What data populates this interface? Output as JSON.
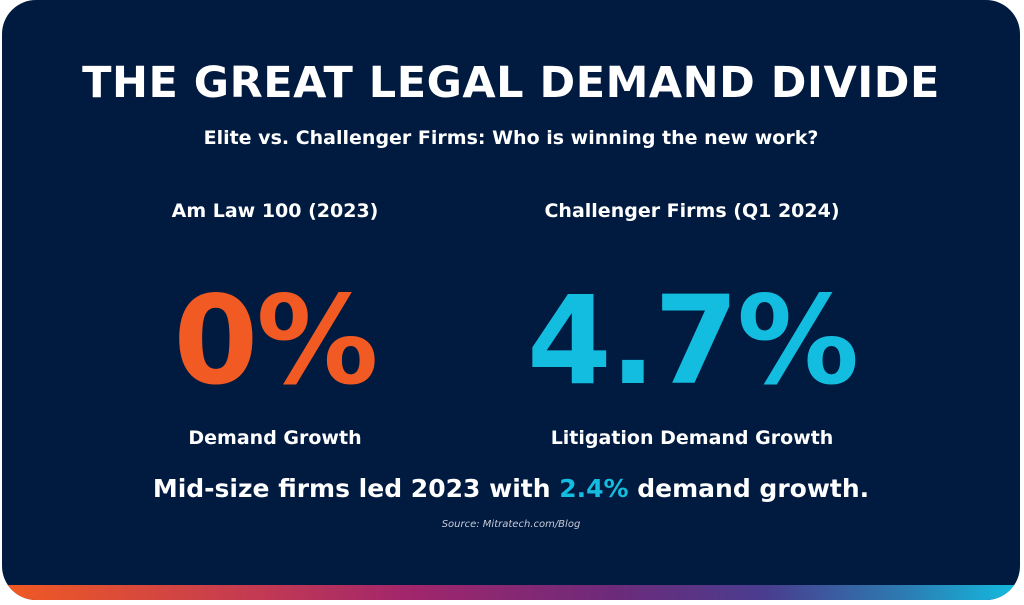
{
  "title": "THE GREAT LEGAL DEMAND DIVIDE",
  "subtitle": "Elite vs. Challenger Firms: Who is winning the new work?",
  "left": {
    "label": "Am Law 100 (2023)",
    "value": "0%",
    "caption": "Demand Growth",
    "color": "#f15a22"
  },
  "right": {
    "label": "Challenger Firms (Q1 2024)",
    "value": "4.7%",
    "caption": "Litigation Demand Growth",
    "color": "#13bde0"
  },
  "summary": {
    "before": "Mid-size firms led 2023 with ",
    "highlight": "2.4%",
    "after": " demand growth."
  },
  "source": "Source: Mitratech.com/Blog",
  "colors": {
    "background": "#001a40",
    "gradient": [
      "#f15a22",
      "#a1266b",
      "#4a3d8f",
      "#13bde0"
    ]
  }
}
